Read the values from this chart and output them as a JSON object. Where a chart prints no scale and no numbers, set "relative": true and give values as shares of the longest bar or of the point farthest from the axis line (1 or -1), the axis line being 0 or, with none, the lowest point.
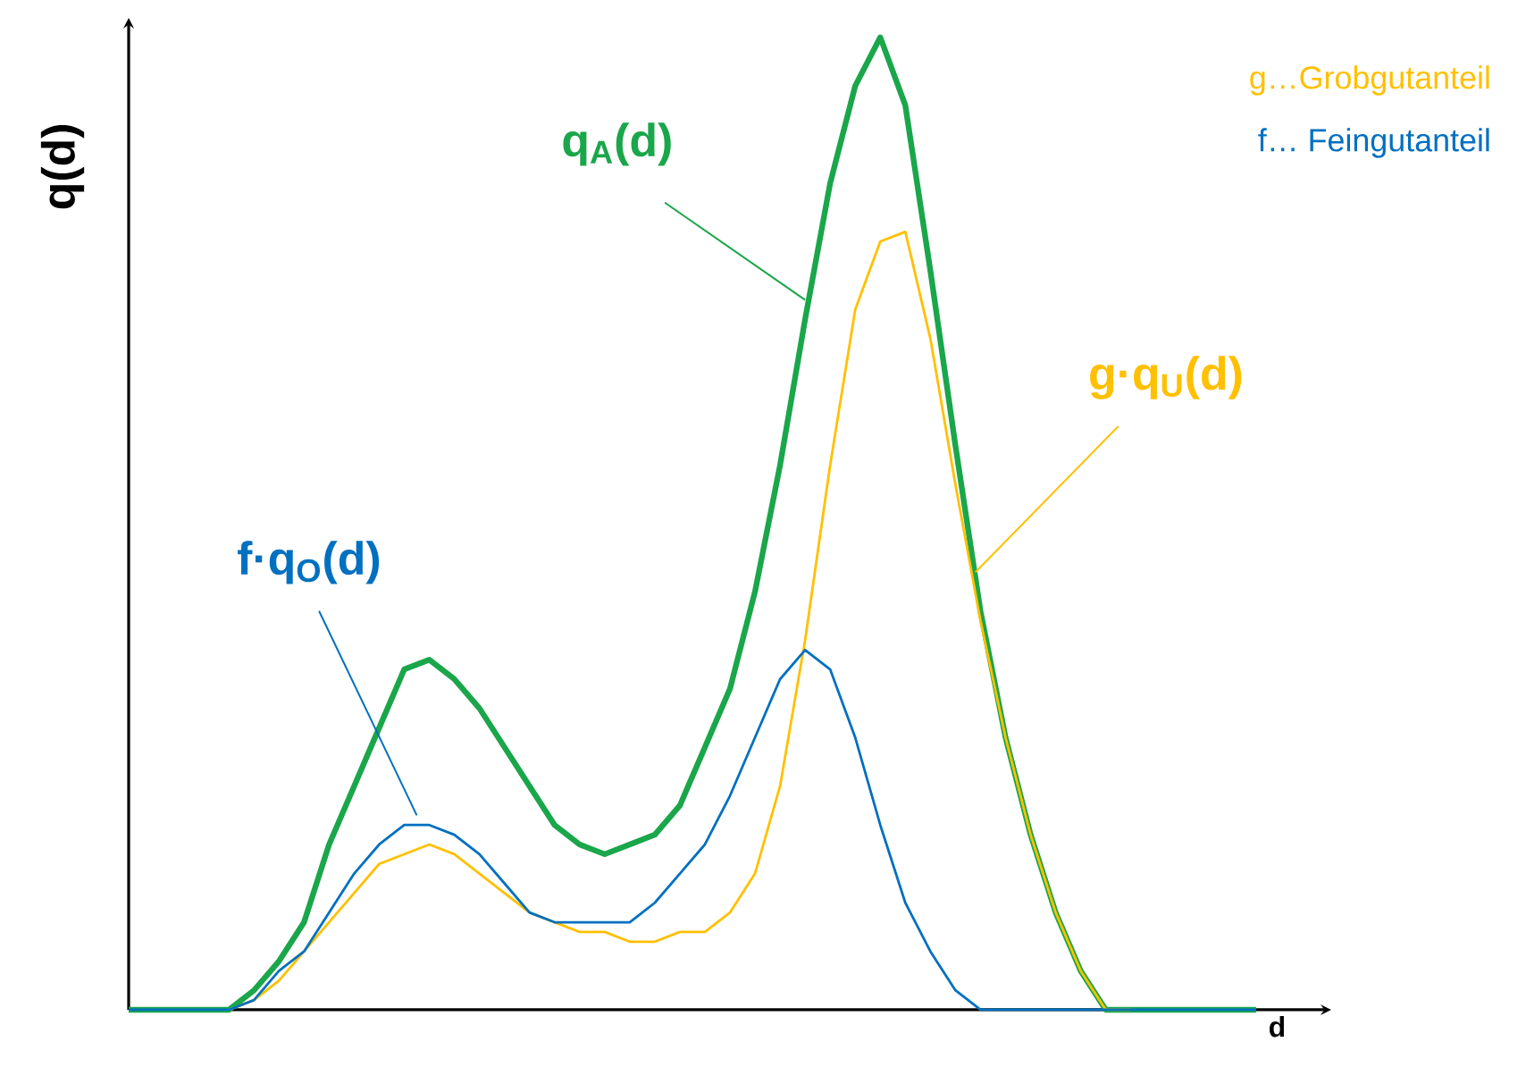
{
  "chart_data": {
    "type": "line",
    "relative": true,
    "xlabel": "d",
    "ylabel": "q(d)",
    "categories": [
      null,
      null,
      null,
      null,
      null,
      null,
      null,
      null,
      null,
      null,
      null,
      null,
      null,
      null,
      null,
      null,
      null,
      null,
      null,
      null,
      null,
      null,
      null,
      null,
      null,
      null,
      null,
      null,
      null,
      null,
      null,
      null,
      null,
      null,
      null,
      null,
      null,
      null,
      null,
      null,
      null,
      null,
      null,
      null,
      null,
      null
    ],
    "series": [
      {
        "name": "q$_{A}$(d)",
        "color": "#1aa64a",
        "values": [
          0,
          0,
          0,
          0,
          0,
          0.02,
          0.05,
          0.09,
          0.17,
          0.23,
          0.29,
          0.35,
          0.36,
          0.34,
          0.31,
          0.27,
          0.23,
          0.19,
          0.17,
          0.16,
          0.17,
          0.18,
          0.21,
          0.27,
          0.33,
          0.43,
          0.56,
          0.71,
          0.85,
          0.95,
          1,
          0.93,
          0.76,
          0.58,
          0.41,
          0.28,
          0.18,
          0.1,
          0.04,
          0,
          0,
          0,
          0,
          0,
          0,
          0
        ]
      },
      {
        "name": "g·q$_{U}$(d)",
        "color": "#ffc000",
        "values": [
          null,
          null,
          null,
          null,
          0,
          0.01,
          0.03,
          0.06,
          0.09,
          0.12,
          0.15,
          0.16,
          0.17,
          0.16,
          0.14,
          0.12,
          0.1,
          0.09,
          0.08,
          0.08,
          0.07,
          0.07,
          0.08,
          0.08,
          0.1,
          0.14,
          0.23,
          0.38,
          0.56,
          0.72,
          0.79,
          0.8,
          0.69,
          0.54,
          0.4,
          0.28,
          0.18,
          0.1,
          0.04,
          0,
          0,
          null,
          null,
          null,
          null,
          null
        ]
      },
      {
        "name": "f·q$_{O}$(d)",
        "color": "#0070c0",
        "values": [
          0,
          0,
          0,
          0,
          0,
          0.01,
          0.04,
          0.06,
          0.1,
          0.14,
          0.17,
          0.19,
          0.19,
          0.18,
          0.16,
          0.13,
          0.1,
          0.09,
          0.09,
          0.09,
          0.09,
          0.11,
          0.14,
          0.17,
          0.22,
          0.28,
          0.34,
          0.37,
          0.35,
          0.28,
          0.19,
          0.11,
          0.06,
          0.02,
          0,
          0,
          0,
          0,
          0,
          0,
          0,
          0,
          0,
          0,
          0,
          0
        ]
      }
    ],
    "annotations": [
      "g…Grobgutanteil",
      "f… Feingutanteil"
    ]
  }
}
